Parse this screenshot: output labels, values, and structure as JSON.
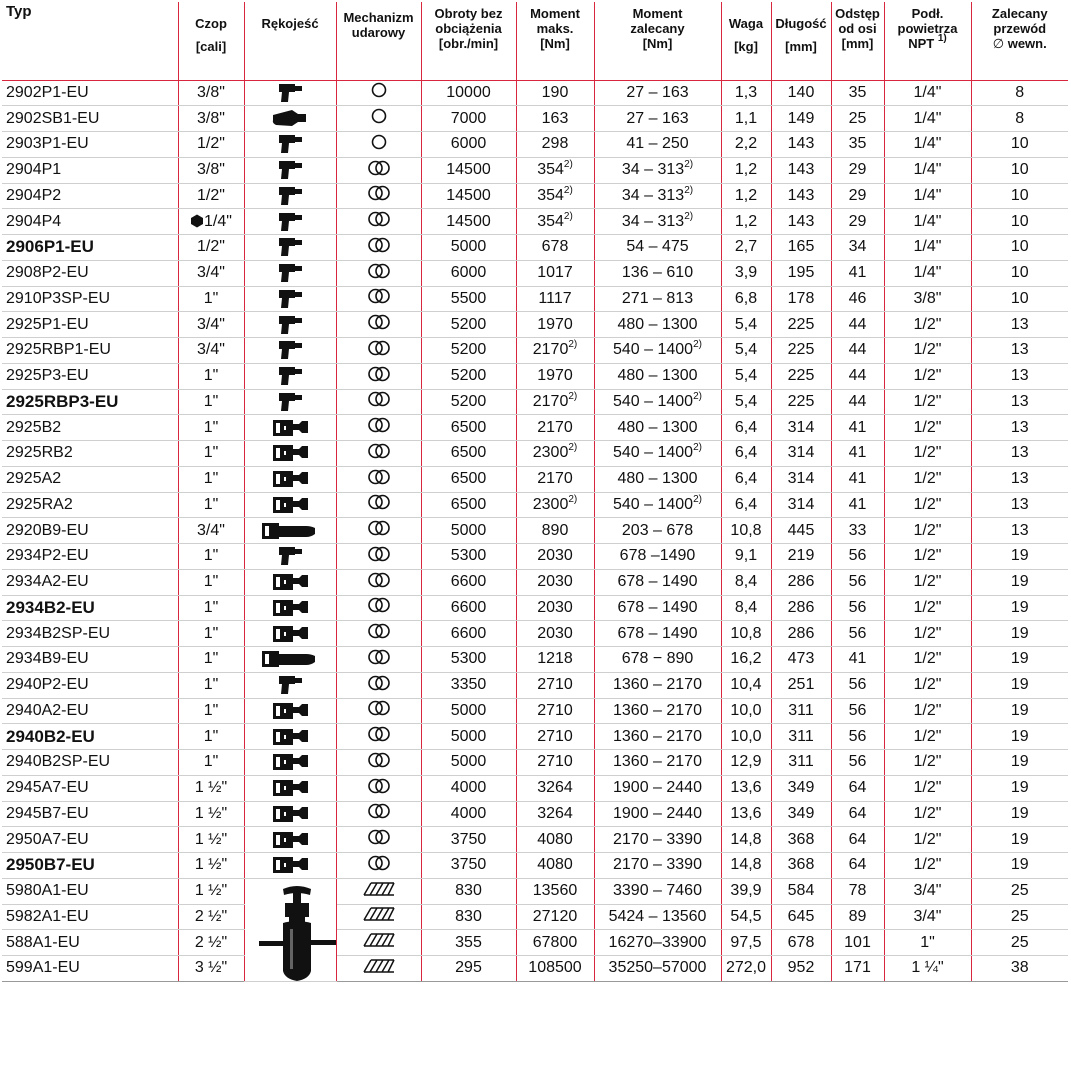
{
  "headers": {
    "typ": "Typ",
    "czop": [
      "Czop"
    ],
    "czop_unit": "[cali]",
    "rekojesc": [
      "Rękojeść"
    ],
    "mechanizm": [
      "Mechanizm",
      "udarowy"
    ],
    "obroty": [
      "Obroty bez",
      "obciążenia",
      "[obr./min]"
    ],
    "moment_maks": [
      "Moment",
      "maks.",
      "[Nm]"
    ],
    "moment_zal": [
      "Moment",
      "zalecany",
      "[Nm]"
    ],
    "waga": [
      "Waga"
    ],
    "waga_unit": "[kg]",
    "dlugosc": [
      "Długość"
    ],
    "dlugosc_unit": "[mm]",
    "odstep": [
      "Odstęp",
      "od osi",
      "[mm]"
    ],
    "podl": [
      "Podł.",
      "powietrza"
    ],
    "podl_npt": "NPT",
    "podl_sup": "1)",
    "zalecany": [
      "Zalecany",
      "przewód"
    ],
    "zalecany_diam": "∅",
    "zalecany_wewn": "wewn."
  },
  "rows": [
    {
      "typ": "2902P1-EU",
      "bold": false,
      "czop": "3/8\"",
      "handle": "pistol-grip-icon",
      "mech": "single-hammer",
      "obroty": "10000",
      "mmax": "190",
      "mmax_sup": "",
      "mzal": "27 – 163",
      "mzal_sup": "",
      "waga": "1,3",
      "dl": "140",
      "odst": "35",
      "podl": "1/4\"",
      "prz": "8"
    },
    {
      "typ": "2902SB1-EU",
      "bold": false,
      "czop": "3/8\"",
      "handle": "compact-inline-icon",
      "mech": "single-hammer",
      "obroty": "7000",
      "mmax": "163",
      "mmax_sup": "",
      "mzal": "27 – 163",
      "mzal_sup": "",
      "waga": "1,1",
      "dl": "149",
      "odst": "25",
      "podl": "1/4\"",
      "prz": "8"
    },
    {
      "typ": "2903P1-EU",
      "bold": false,
      "czop": "1/2\"",
      "handle": "pistol-grip-icon",
      "mech": "single-hammer",
      "obroty": "6000",
      "mmax": "298",
      "mmax_sup": "",
      "mzal": "41 – 250",
      "mzal_sup": "",
      "waga": "2,2",
      "dl": "143",
      "odst": "35",
      "podl": "1/4\"",
      "prz": "10"
    },
    {
      "typ": "2904P1",
      "bold": false,
      "czop": "3/8\"",
      "handle": "pistol-grip-icon",
      "mech": "twin-hammer",
      "obroty": "14500",
      "mmax": "354",
      "mmax_sup": "2)",
      "mzal": "34 – 313",
      "mzal_sup": "2)",
      "waga": "1,2",
      "dl": "143",
      "odst": "29",
      "podl": "1/4\"",
      "prz": "10"
    },
    {
      "typ": "2904P2",
      "bold": false,
      "czop": "1/2\"",
      "handle": "pistol-grip-icon",
      "mech": "twin-hammer",
      "obroty": "14500",
      "mmax": "354",
      "mmax_sup": "2)",
      "mzal": "34 – 313",
      "mzal_sup": "2)",
      "waga": "1,2",
      "dl": "143",
      "odst": "29",
      "podl": "1/4\"",
      "prz": "10"
    },
    {
      "typ": "2904P4",
      "bold": false,
      "czop": "1/4\"",
      "hex": true,
      "handle": "pistol-grip-icon",
      "mech": "twin-hammer",
      "obroty": "14500",
      "mmax": "354",
      "mmax_sup": "2)",
      "mzal": "34 – 313",
      "mzal_sup": "2)",
      "waga": "1,2",
      "dl": "143",
      "odst": "29",
      "podl": "1/4\"",
      "prz": "10"
    },
    {
      "typ": "2906P1-EU",
      "bold": true,
      "czop": "1/2\"",
      "handle": "pistol-grip-icon",
      "mech": "twin-hammer",
      "obroty": "5000",
      "mmax": "678",
      "mmax_sup": "",
      "mzal": "54 – 475",
      "mzal_sup": "",
      "waga": "2,7",
      "dl": "165",
      "odst": "34",
      "podl": "1/4\"",
      "prz": "10"
    },
    {
      "typ": "2908P2-EU",
      "bold": false,
      "czop": "3/4\"",
      "handle": "pistol-grip-icon",
      "mech": "twin-hammer",
      "obroty": "6000",
      "mmax": "1017",
      "mmax_sup": "",
      "mzal": "136 – 610",
      "mzal_sup": "",
      "waga": "3,9",
      "dl": "195",
      "odst": "41",
      "podl": "1/4\"",
      "prz": "10"
    },
    {
      "typ": "2910P3SP-EU",
      "bold": false,
      "czop": "1\"",
      "handle": "pistol-grip-icon",
      "mech": "twin-hammer",
      "obroty": "5500",
      "mmax": "1117",
      "mmax_sup": "",
      "mzal": "271 – 813",
      "mzal_sup": "",
      "waga": "6,8",
      "dl": "178",
      "odst": "46",
      "podl": "3/8\"",
      "prz": "10"
    },
    {
      "typ": "2925P1-EU",
      "bold": false,
      "czop": "3/4\"",
      "handle": "pistol-grip-icon",
      "mech": "twin-hammer",
      "obroty": "5200",
      "mmax": "1970",
      "mmax_sup": "",
      "mzal": "480 – 1300",
      "mzal_sup": "",
      "waga": "5,4",
      "dl": "225",
      "odst": "44",
      "podl": "1/2\"",
      "prz": "13"
    },
    {
      "typ": "2925RBP1-EU",
      "bold": false,
      "czop": "3/4\"",
      "handle": "pistol-grip-icon",
      "mech": "twin-hammer",
      "obroty": "5200",
      "mmax": "2170",
      "mmax_sup": "2)",
      "mzal": "540 – 1400",
      "mzal_sup": "2)",
      "waga": "5,4",
      "dl": "225",
      "odst": "44",
      "podl": "1/2\"",
      "prz": "13"
    },
    {
      "typ": "2925P3-EU",
      "bold": false,
      "czop": "1\"",
      "handle": "pistol-grip-icon",
      "mech": "twin-hammer",
      "obroty": "5200",
      "mmax": "1970",
      "mmax_sup": "",
      "mzal": "480 – 1300",
      "mzal_sup": "",
      "waga": "5,4",
      "dl": "225",
      "odst": "44",
      "podl": "1/2\"",
      "prz": "13"
    },
    {
      "typ": "2925RBP3-EU",
      "bold": true,
      "czop": "1\"",
      "handle": "pistol-grip-icon",
      "mech": "twin-hammer",
      "obroty": "5200",
      "mmax": "2170",
      "mmax_sup": "2)",
      "mzal": "540 – 1400",
      "mzal_sup": "2)",
      "waga": "5,4",
      "dl": "225",
      "odst": "44",
      "podl": "1/2\"",
      "prz": "13"
    },
    {
      "typ": "2925B2",
      "bold": false,
      "czop": "1\"",
      "handle": "d-handle-icon",
      "mech": "twin-hammer",
      "obroty": "6500",
      "mmax": "2170",
      "mmax_sup": "",
      "mzal": "480 – 1300",
      "mzal_sup": "",
      "waga": "6,4",
      "dl": "314",
      "odst": "41",
      "podl": "1/2\"",
      "prz": "13"
    },
    {
      "typ": "2925RB2",
      "bold": false,
      "czop": "1\"",
      "handle": "d-handle-icon",
      "mech": "twin-hammer",
      "obroty": "6500",
      "mmax": "2300",
      "mmax_sup": "2)",
      "mzal": "540 – 1400",
      "mzal_sup": "2)",
      "waga": "6,4",
      "dl": "314",
      "odst": "41",
      "podl": "1/2\"",
      "prz": "13"
    },
    {
      "typ": "2925A2",
      "bold": false,
      "czop": "1\"",
      "handle": "d-handle-icon",
      "mech": "twin-hammer",
      "obroty": "6500",
      "mmax": "2170",
      "mmax_sup": "",
      "mzal": "480 – 1300",
      "mzal_sup": "",
      "waga": "6,4",
      "dl": "314",
      "odst": "41",
      "podl": "1/2\"",
      "prz": "13"
    },
    {
      "typ": "2925RA2",
      "bold": false,
      "czop": "1\"",
      "handle": "d-handle-icon",
      "mech": "twin-hammer",
      "obroty": "6500",
      "mmax": "2300",
      "mmax_sup": "2)",
      "mzal": "540 – 1400",
      "mzal_sup": "2)",
      "waga": "6,4",
      "dl": "314",
      "odst": "41",
      "podl": "1/2\"",
      "prz": "13"
    },
    {
      "typ": "2920B9-EU",
      "bold": false,
      "czop": "3/4\"",
      "handle": "extended-anvil-icon",
      "mech": "twin-hammer",
      "obroty": "5000",
      "mmax": "890",
      "mmax_sup": "",
      "mzal": "203 – 678",
      "mzal_sup": "",
      "waga": "10,8",
      "dl": "445",
      "odst": "33",
      "podl": "1/2\"",
      "prz": "13"
    },
    {
      "typ": "2934P2-EU",
      "bold": false,
      "czop": "1\"",
      "handle": "pistol-grip-icon",
      "mech": "twin-hammer",
      "obroty": "5300",
      "mmax": "2030",
      "mmax_sup": "",
      "mzal": "678 –1490",
      "mzal_sup": "",
      "waga": "9,1",
      "dl": "219",
      "odst": "56",
      "podl": "1/2\"",
      "prz": "19"
    },
    {
      "typ": "2934A2-EU",
      "bold": false,
      "czop": "1\"",
      "handle": "d-handle-icon",
      "mech": "twin-hammer",
      "obroty": "6600",
      "mmax": "2030",
      "mmax_sup": "",
      "mzal": "678 – 1490",
      "mzal_sup": "",
      "waga": "8,4",
      "dl": "286",
      "odst": "56",
      "podl": "1/2\"",
      "prz": "19"
    },
    {
      "typ": "2934B2-EU",
      "bold": true,
      "czop": "1\"",
      "handle": "d-handle-icon",
      "mech": "twin-hammer",
      "obroty": "6600",
      "mmax": "2030",
      "mmax_sup": "",
      "mzal": "678 – 1490",
      "mzal_sup": "",
      "waga": "8,4",
      "dl": "286",
      "odst": "56",
      "podl": "1/2\"",
      "prz": "19"
    },
    {
      "typ": "2934B2SP-EU",
      "bold": false,
      "czop": "1\"",
      "handle": "d-handle-icon",
      "mech": "twin-hammer",
      "obroty": "6600",
      "mmax": "2030",
      "mmax_sup": "",
      "mzal": "678 – 1490",
      "mzal_sup": "",
      "waga": "10,8",
      "dl": "286",
      "odst": "56",
      "podl": "1/2\"",
      "prz": "19"
    },
    {
      "typ": "2934B9-EU",
      "bold": false,
      "czop": "1\"",
      "handle": "extended-anvil-icon",
      "mech": "twin-hammer",
      "obroty": "5300",
      "mmax": "1218",
      "mmax_sup": "",
      "mzal": "678 − 890",
      "mzal_sup": "",
      "waga": "16,2",
      "dl": "473",
      "odst": "41",
      "podl": "1/2\"",
      "prz": "19"
    },
    {
      "typ": "2940P2-EU",
      "bold": false,
      "czop": "1\"",
      "handle": "pistol-grip-icon",
      "mech": "twin-hammer",
      "obroty": "3350",
      "mmax": "2710",
      "mmax_sup": "",
      "mzal": "1360 – 2170",
      "mzal_sup": "",
      "waga": "10,4",
      "dl": "251",
      "odst": "56",
      "podl": "1/2\"",
      "prz": "19"
    },
    {
      "typ": "2940A2-EU",
      "bold": false,
      "czop": "1\"",
      "handle": "d-handle-icon",
      "mech": "twin-hammer",
      "obroty": "5000",
      "mmax": "2710",
      "mmax_sup": "",
      "mzal": "1360 – 2170",
      "mzal_sup": "",
      "waga": "10,0",
      "dl": "311",
      "odst": "56",
      "podl": "1/2\"",
      "prz": "19"
    },
    {
      "typ": "2940B2-EU",
      "bold": true,
      "czop": "1\"",
      "handle": "d-handle-icon",
      "mech": "twin-hammer",
      "obroty": "5000",
      "mmax": "2710",
      "mmax_sup": "",
      "mzal": "1360 – 2170",
      "mzal_sup": "",
      "waga": "10,0",
      "dl": "311",
      "odst": "56",
      "podl": "1/2\"",
      "prz": "19"
    },
    {
      "typ": "2940B2SP-EU",
      "bold": false,
      "czop": "1\"",
      "handle": "d-handle-icon",
      "mech": "twin-hammer",
      "obroty": "5000",
      "mmax": "2710",
      "mmax_sup": "",
      "mzal": "1360 – 2170",
      "mzal_sup": "",
      "waga": "12,9",
      "dl": "311",
      "odst": "56",
      "podl": "1/2\"",
      "prz": "19"
    },
    {
      "typ": "2945A7-EU",
      "bold": false,
      "czop": "1 ½\"",
      "handle": "d-handle-icon",
      "mech": "twin-hammer",
      "obroty": "4000",
      "mmax": "3264",
      "mmax_sup": "",
      "mzal": "1900 – 2440",
      "mzal_sup": "",
      "waga": "13,6",
      "dl": "349",
      "odst": "64",
      "podl": "1/2\"",
      "prz": "19"
    },
    {
      "typ": "2945B7-EU",
      "bold": false,
      "czop": "1 ½\"",
      "handle": "d-handle-icon",
      "mech": "twin-hammer",
      "obroty": "4000",
      "mmax": "3264",
      "mmax_sup": "",
      "mzal": "1900 – 2440",
      "mzal_sup": "",
      "waga": "13,6",
      "dl": "349",
      "odst": "64",
      "podl": "1/2\"",
      "prz": "19"
    },
    {
      "typ": "2950A7-EU",
      "bold": false,
      "czop": "1 ½\"",
      "handle": "d-handle-icon",
      "mech": "twin-hammer",
      "obroty": "3750",
      "mmax": "4080",
      "mmax_sup": "",
      "mzal": "2170 – 3390",
      "mzal_sup": "",
      "waga": "14,8",
      "dl": "368",
      "odst": "64",
      "podl": "1/2\"",
      "prz": "19"
    },
    {
      "typ": "2950B7-EU",
      "bold": true,
      "czop": "1 ½\"",
      "handle": "d-handle-icon",
      "mech": "twin-hammer",
      "obroty": "3750",
      "mmax": "4080",
      "mmax_sup": "",
      "mzal": "2170 – 3390",
      "mzal_sup": "",
      "waga": "14,8",
      "dl": "368",
      "odst": "64",
      "podl": "1/2\"",
      "prz": "19"
    },
    {
      "typ": "5980A1-EU",
      "bold": false,
      "czop": "1 ½\"",
      "handle": "straight-t-handle-icon",
      "mech": "multi-blade",
      "obroty": "830",
      "mmax": "13560",
      "mmax_sup": "",
      "mzal": "3390 – 7460",
      "mzal_sup": "",
      "waga": "39,9",
      "dl": "584",
      "odst": "78",
      "podl": "3/4\"",
      "prz": "25"
    },
    {
      "typ": "5982A1-EU",
      "bold": false,
      "czop": "2 ½\"",
      "handle": "",
      "mech": "multi-blade",
      "obroty": "830",
      "mmax": "27120",
      "mmax_sup": "",
      "mzal": "5424 – 13560",
      "mzal_sup": "",
      "waga": "54,5",
      "dl": "645",
      "odst": "89",
      "podl": "3/4\"",
      "prz": "25"
    },
    {
      "typ": "588A1-EU",
      "bold": false,
      "czop": "2 ½\"",
      "handle": "",
      "mech": "multi-blade",
      "obroty": "355",
      "mmax": "67800",
      "mmax_sup": "",
      "mzal": "16270–33900",
      "mzal_sup": "",
      "waga": "97,5",
      "dl": "678",
      "odst": "101",
      "podl": "1\"",
      "prz": "25"
    },
    {
      "typ": "599A1-EU",
      "bold": false,
      "czop": "3 ½\"",
      "handle": "",
      "mech": "multi-blade",
      "obroty": "295",
      "mmax": "108500",
      "mmax_sup": "",
      "mzal": "35250–57000",
      "mzal_sup": "",
      "waga": "272,0",
      "dl": "952",
      "odst": "171",
      "podl": "1 ¼\"",
      "prz": "38"
    }
  ]
}
